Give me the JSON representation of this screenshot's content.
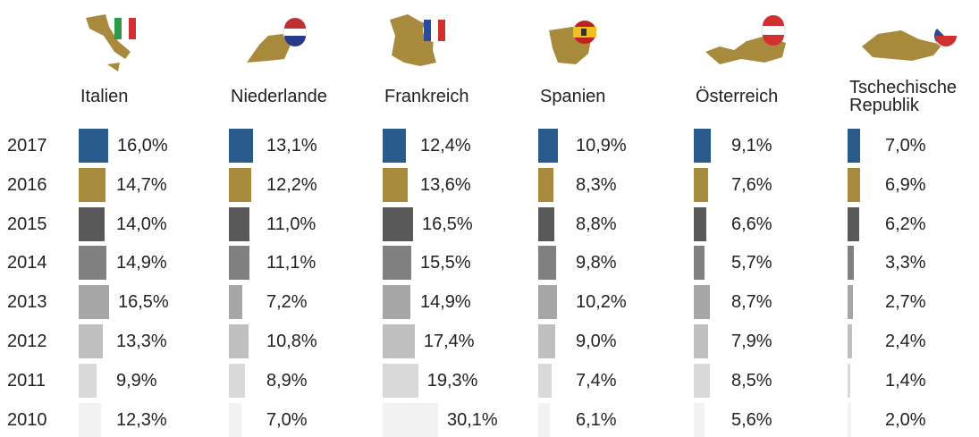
{
  "chart_data": {
    "type": "bar",
    "categories": [
      "2017",
      "2016",
      "2015",
      "2014",
      "2013",
      "2012",
      "2011",
      "2010"
    ],
    "colors": [
      "#285a8c",
      "#a88a3c",
      "#595959",
      "#808080",
      "#a6a6a6",
      "#bfbfbf",
      "#d9d9d9",
      "#f2f2f2"
    ],
    "series": [
      {
        "name": "Italien",
        "values": [
          16.0,
          14.7,
          14.0,
          14.9,
          16.5,
          13.3,
          9.9,
          12.3
        ],
        "value_labels": [
          "16,0%",
          "14,7%",
          "14,0%",
          "14,9%",
          "16,5%",
          "13,3%",
          "9,9%",
          "12,3%"
        ]
      },
      {
        "name": "Niederlande",
        "values": [
          13.1,
          12.2,
          11.0,
          11.1,
          7.2,
          10.8,
          8.9,
          7.0
        ],
        "value_labels": [
          "13,1%",
          "12,2%",
          "11,0%",
          "11,1%",
          "7,2%",
          "10,8%",
          "8,9%",
          "7,0%"
        ]
      },
      {
        "name": "Frankreich",
        "values": [
          12.4,
          13.6,
          16.5,
          15.5,
          14.9,
          17.4,
          19.3,
          30.1
        ],
        "value_labels": [
          "12,4%",
          "13,6%",
          "16,5%",
          "15,5%",
          "14,9%",
          "17,4%",
          "19,3%",
          "30,1%"
        ]
      },
      {
        "name": "Spanien",
        "values": [
          10.9,
          8.3,
          8.8,
          9.8,
          10.2,
          9.0,
          7.4,
          6.1
        ],
        "value_labels": [
          "10,9%",
          "8,3%",
          "8,8%",
          "9,8%",
          "10,2%",
          "9,0%",
          "7,4%",
          "6,1%"
        ]
      },
      {
        "name": "Österreich",
        "values": [
          9.1,
          7.6,
          6.6,
          5.7,
          8.7,
          7.9,
          8.5,
          5.6
        ],
        "value_labels": [
          "9,1%",
          "7,6%",
          "6,6%",
          "5,7%",
          "8,7%",
          "7,9%",
          "8,5%",
          "5,6%"
        ]
      },
      {
        "name": "Tschechische Republik",
        "values": [
          7.0,
          6.9,
          6.2,
          3.3,
          2.7,
          2.4,
          1.4,
          2.0
        ],
        "value_labels": [
          "7,0%",
          "6,9%",
          "6,2%",
          "3,3%",
          "2,7%",
          "2,4%",
          "1,4%",
          "2,0%"
        ]
      }
    ]
  }
}
